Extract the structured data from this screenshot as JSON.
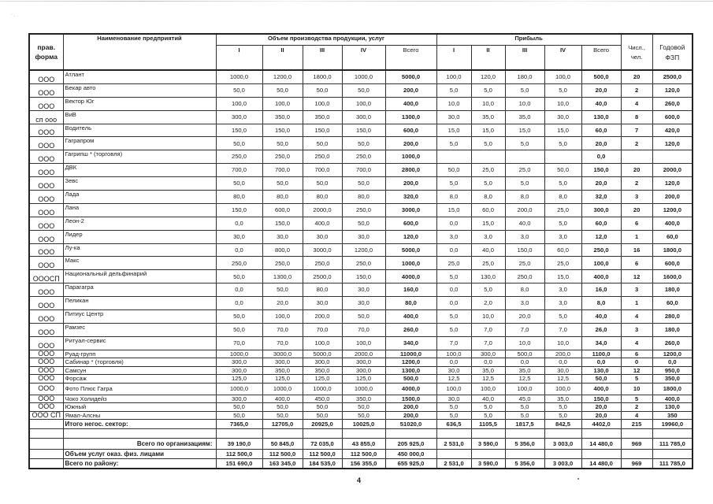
{
  "header": {
    "form": "прав. форма",
    "name": "Наименование предприятий",
    "production_group": "Объем производства продукции, услуг",
    "profit_group": "Прибыль",
    "quarters": [
      "I",
      "II",
      "III",
      "IV"
    ],
    "total": "Всего",
    "count": "Числ., чел.",
    "fzp": "Годовой ФЗП"
  },
  "rows": [
    [
      "ООО",
      "Атлант",
      "1000,0",
      "1200,0",
      "1800,0",
      "1000,0",
      "5000,0",
      "100,0",
      "120,0",
      "180,0",
      "100,0",
      "500,0",
      "20",
      "2500,0"
    ],
    [
      "ООО",
      "Бекар авто",
      "50,0",
      "50,0",
      "50,0",
      "50,0",
      "200,0",
      "5,0",
      "5,0",
      "5,0",
      "5,0",
      "20,0",
      "2",
      "120,0"
    ],
    [
      "ООО",
      "Вектор Юг",
      "100,0",
      "100,0",
      "100,0",
      "100,0",
      "400,0",
      "10,0",
      "10,0",
      "10,0",
      "10,0",
      "40,0",
      "4",
      "260,0"
    ],
    [
      "сп ооо",
      "ВиВ",
      "300,0",
      "350,0",
      "350,0",
      "300,0",
      "1300,0",
      "30,0",
      "35,0",
      "35,0",
      "30,0",
      "130,0",
      "8",
      "600,0"
    ],
    [
      "ООО",
      "Водитель",
      "150,0",
      "150,0",
      "150,0",
      "150,0",
      "600,0",
      "15,0",
      "15,0",
      "15,0",
      "15,0",
      "60,0",
      "7",
      "420,0"
    ],
    [
      "ООО",
      "Гаграпром",
      "50,0",
      "50,0",
      "50,0",
      "50,0",
      "200,0",
      "5,0",
      "5,0",
      "5,0",
      "5,0",
      "20,0",
      "2",
      "120,0"
    ],
    [
      "ООО",
      "Гагрипш * (торговля)",
      "250,0",
      "250,0",
      "250,0",
      "250,0",
      "1000,0",
      "",
      "",
      "",
      "",
      "0,0",
      "",
      ""
    ],
    [
      "ООО",
      "ДВК",
      "700,0",
      "700,0",
      "700,0",
      "700,0",
      "2800,0",
      "50,0",
      "25,0",
      "25,0",
      "50,0",
      "150,0",
      "20",
      "2000,0"
    ],
    [
      "ООО",
      "Зевс",
      "50,0",
      "50,0",
      "50,0",
      "50,0",
      "200,0",
      "5,0",
      "5,0",
      "5,0",
      "5,0",
      "20,0",
      "2",
      "120,0"
    ],
    [
      "ООО",
      "Лада",
      "80,0",
      "80,0",
      "80,0",
      "80,0",
      "320,0",
      "8,0",
      "8,0",
      "8,0",
      "8,0",
      "32,0",
      "3",
      "200,0"
    ],
    [
      "ООО",
      "Лана",
      "150,0",
      "600,0",
      "2000,0",
      "250,0",
      "3000,0",
      "15,0",
      "60,0",
      "200,0",
      "25,0",
      "300,0",
      "20",
      "1200,0"
    ],
    [
      "ООО",
      "Леон-2",
      "0,0",
      "150,0",
      "400,0",
      "50,0",
      "600,0",
      "0,0",
      "15,0",
      "40,0",
      "5,0",
      "60,0",
      "6",
      "400,0"
    ],
    [
      "ООО",
      "Лидер",
      "30,0",
      "30,0",
      "30,0",
      "30,0",
      "120,0",
      "3,0",
      "3,0",
      "3,0",
      "3,0",
      "12,0",
      "1",
      "60,0"
    ],
    [
      "ООО",
      "Лу-ка",
      "0,0",
      "800,0",
      "3000,0",
      "1200,0",
      "5000,0",
      "0,0",
      "40,0",
      "150,0",
      "60,0",
      "250,0",
      "16",
      "1800,0"
    ],
    [
      "ООО",
      "Макс",
      "250,0",
      "250,0",
      "250,0",
      "250,0",
      "1000,0",
      "25,0",
      "25,0",
      "25,0",
      "25,0",
      "100,0",
      "6",
      "600,0"
    ],
    [
      "ОООСП",
      "Национальный дельфинарий",
      "50,0",
      "1300,0",
      "2500,0",
      "150,0",
      "4000,0",
      "5,0",
      "130,0",
      "250,0",
      "15,0",
      "400,0",
      "12",
      "1600,0"
    ],
    [
      "ООО",
      "Парагагра",
      "0,0",
      "50,0",
      "80,0",
      "30,0",
      "160,0",
      "0,0",
      "5,0",
      "8,0",
      "3,0",
      "16,0",
      "3",
      "180,0"
    ],
    [
      "ООО",
      "Пеликан",
      "0,0",
      "20,0",
      "30,0",
      "30,0",
      "80,0",
      "0,0",
      "2,0",
      "3,0",
      "3,0",
      "8,0",
      "1",
      "60,0"
    ],
    [
      "ООО",
      "Питиус Центр",
      "50,0",
      "100,0",
      "200,0",
      "50,0",
      "400,0",
      "5,0",
      "10,0",
      "20,0",
      "5,0",
      "40,0",
      "4",
      "280,0"
    ],
    [
      "ООО",
      "Рамзес",
      "50,0",
      "70,0",
      "70,0",
      "70,0",
      "260,0",
      "5,0",
      "7,0",
      "7,0",
      "7,0",
      "26,0",
      "3",
      "180,0"
    ],
    [
      "ООО",
      "Ритуал-сервис",
      "70,0",
      "70,0",
      "100,0",
      "100,0",
      "340,0",
      "7,0",
      "7,0",
      "10,0",
      "10,0",
      "34,0",
      "4",
      "260,0"
    ],
    [
      "ООО",
      "Руад-групп",
      "1000,0",
      "3000,0",
      "5000,0",
      "2000,0",
      "11000,0",
      "100,0",
      "300,0",
      "500,0",
      "200,0",
      "1100,0",
      "6",
      "1200,0"
    ],
    [
      "ООО",
      "Сабинар  * (торговля)",
      "300,0",
      "300,0",
      "300,0",
      "300,0",
      "1200,0",
      "0,0",
      "0,0",
      "0,0",
      "0,0",
      "0,0",
      "0",
      "0,0"
    ],
    [
      "ООО",
      "Самсун",
      "300,0",
      "350,0",
      "350,0",
      "300,0",
      "1300,0",
      "30,0",
      "35,0",
      "35,0",
      "30,0",
      "130,0",
      "12",
      "950,0"
    ],
    [
      "ООО",
      "Форсаж",
      "125,0",
      "125,0",
      "125,0",
      "125,0",
      "500,0",
      "12,5",
      "12,5",
      "12,5",
      "12,5",
      "50,0",
      "5",
      "350,0"
    ],
    [
      "ООО",
      "Фото Плюс Гагра",
      "1000,0",
      "1000,0",
      "1000,0",
      "1000,0",
      "4000,0",
      "100,0",
      "100,0",
      "100,0",
      "100,0",
      "400,0",
      "10",
      "1800,0"
    ],
    [
      "ООО",
      "Чоко Холидейз",
      "300,0",
      "400,0",
      "450,0",
      "350,0",
      "1500,0",
      "30,0",
      "40,0",
      "45,0",
      "35,0",
      "150,0",
      "5",
      "400,0"
    ],
    [
      "ООО",
      "Южный",
      "50,0",
      "50,0",
      "50,0",
      "50,0",
      "200,0",
      "5,0",
      "5,0",
      "5,0",
      "5,0",
      "20,0",
      "2",
      "130,0"
    ],
    [
      "ООО СП",
      "Ямал-Алсны",
      "50,0",
      "50,0",
      "50,0",
      "50,0",
      "200,0",
      "5,0",
      "5,0",
      "5,0",
      "5,0",
      "20,0",
      "4",
      "350"
    ]
  ],
  "summary": [
    [
      "",
      "Итого негос. сектор:",
      "7365,0",
      "12705,0",
      "20925,0",
      "10025,0",
      "51020,0",
      "636,5",
      "1105,5",
      "1817,5",
      "842,5",
      "4402,0",
      "215",
      "19960,0"
    ],
    [
      "",
      "",
      "",
      "",
      "",
      "",
      "",
      "",
      "",
      "",
      "",
      "",
      "",
      ""
    ],
    [
      "",
      "Всего по организациям:",
      "39 190,0",
      "50 845,0",
      "72 035,0",
      "43 855,0",
      "205 925,0",
      "2 531,0",
      "3 590,0",
      "5 356,0",
      "3 003,0",
      "14 480,0",
      "969",
      "111 785,0"
    ],
    [
      "",
      "Объем услуг оказ. физ. лицами",
      "112 500,0",
      "112 500,0",
      "112 500,0",
      "112 500,0",
      "450 000,0",
      "",
      "",
      "",
      "",
      "",
      "",
      ""
    ],
    [
      "",
      "Всего по району:",
      "151 690,0",
      "163 345,0",
      "184 535,0",
      "156 355,0",
      "655 925,0",
      "2 531,0",
      "3 590,0",
      "5 356,0",
      "3 003,0",
      "14 480,0",
      "969",
      "111 785,0"
    ]
  ],
  "page_number": "4"
}
